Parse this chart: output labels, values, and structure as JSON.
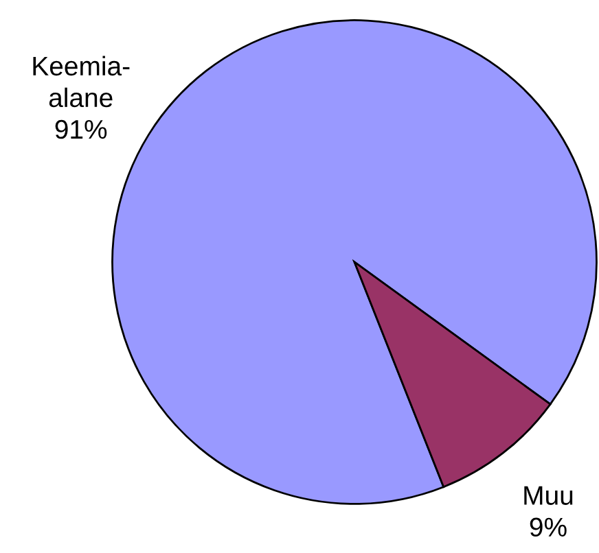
{
  "chart_data": {
    "type": "pie",
    "categories": [
      "Keemia-\nalane",
      "Muu"
    ],
    "values": [
      91,
      9
    ],
    "colors": [
      "#9999ff",
      "#993366"
    ],
    "value_labels": [
      "91%",
      "9%"
    ]
  }
}
